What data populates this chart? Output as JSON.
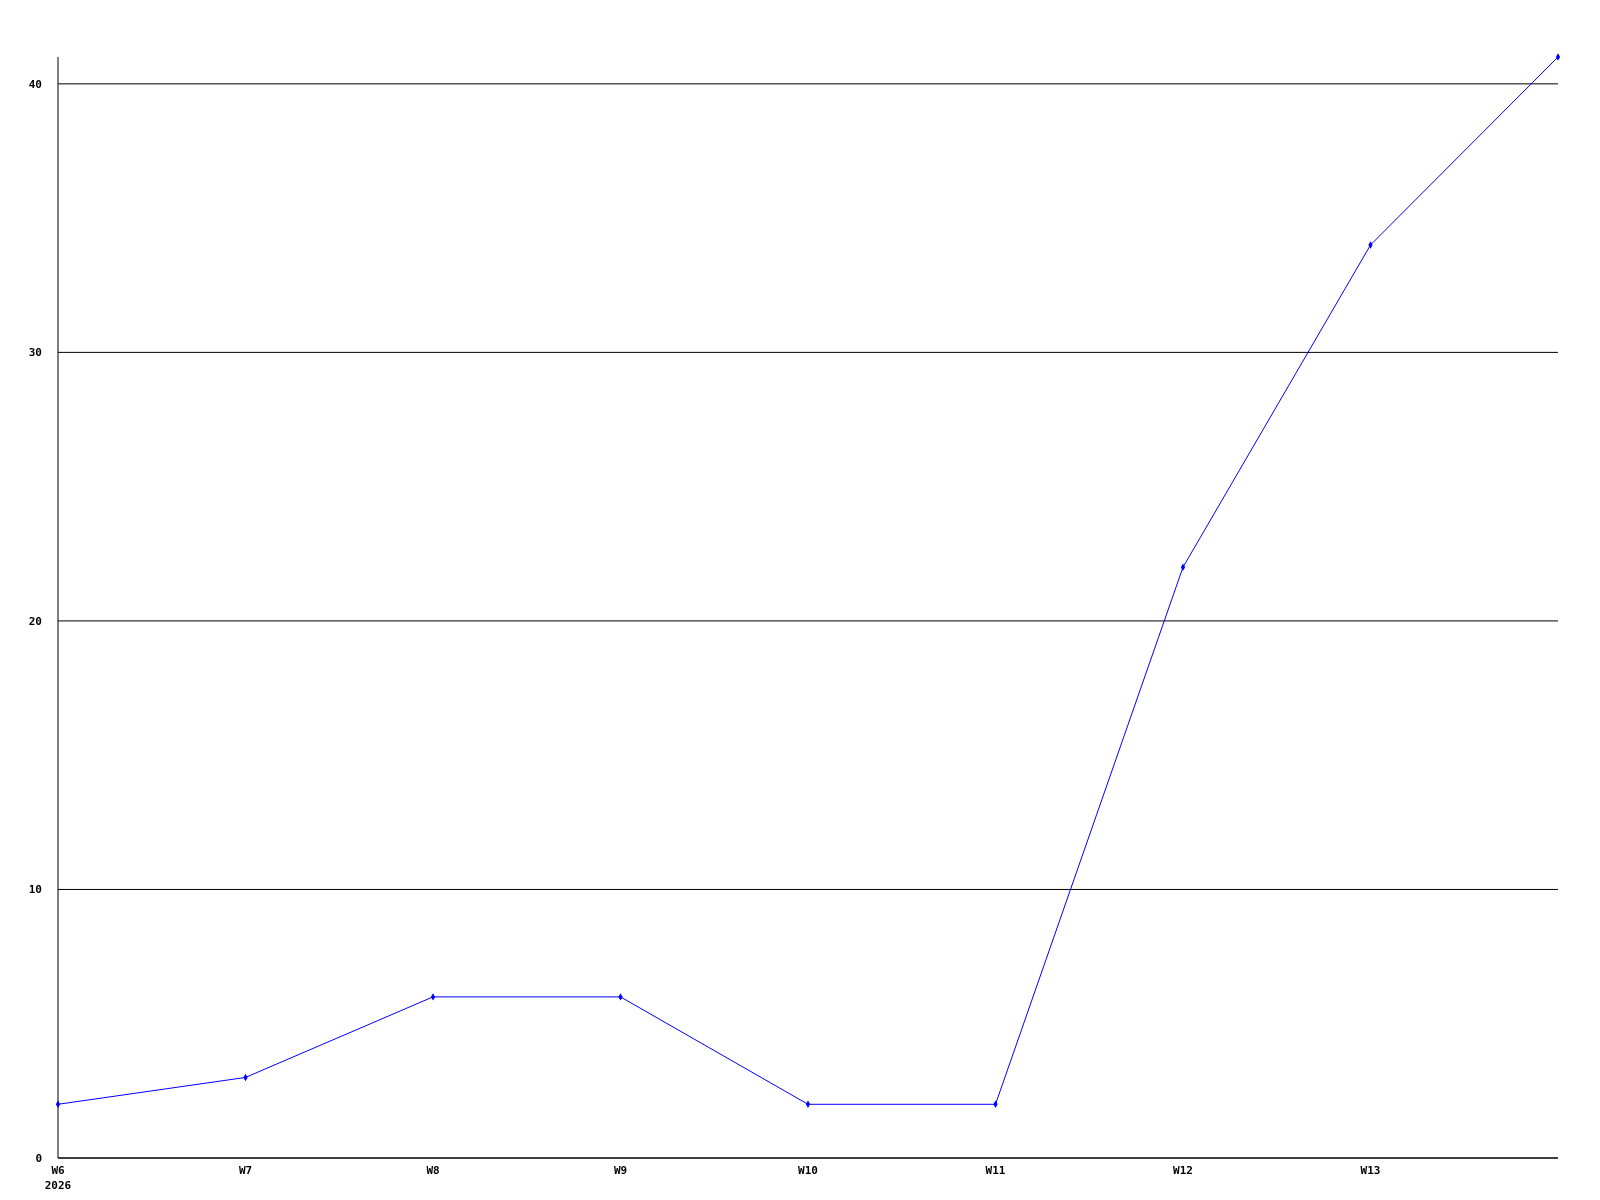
{
  "chart_data": {
    "type": "line",
    "categories": [
      "W6",
      "W7",
      "W8",
      "W9",
      "W10",
      "W11",
      "W12",
      "W13",
      null
    ],
    "series": [
      {
        "color": "#0000ff",
        "values": [
          2,
          3,
          6,
          6,
          2,
          2,
          22,
          34,
          41
        ]
      }
    ],
    "annotations": [
      "2026"
    ],
    "ylim": [
      0,
      41
    ],
    "yticks": [
      0,
      10,
      20,
      30,
      40
    ],
    "grid": "y",
    "marker": "diamond",
    "line_style": "solid"
  }
}
